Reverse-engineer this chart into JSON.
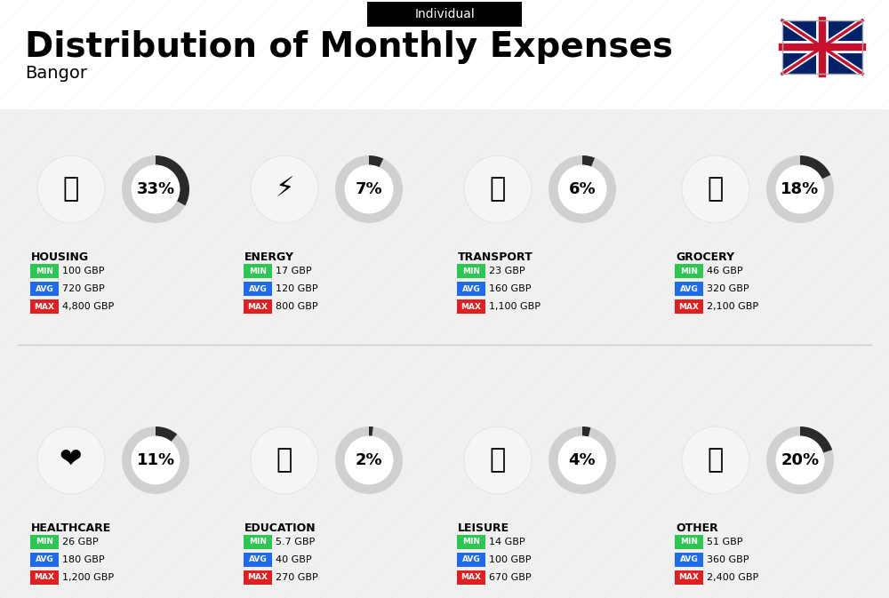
{
  "title": "Distribution of Monthly Expenses",
  "subtitle": "Individual",
  "city": "Bangor",
  "bg_color": "#f0f0f0",
  "categories": [
    {
      "name": "HOUSING",
      "percent": 33,
      "min": "100 GBP",
      "avg": "720 GBP",
      "max": "4,800 GBP",
      "row": 0,
      "col": 0
    },
    {
      "name": "ENERGY",
      "percent": 7,
      "min": "17 GBP",
      "avg": "120 GBP",
      "max": "800 GBP",
      "row": 0,
      "col": 1
    },
    {
      "name": "TRANSPORT",
      "percent": 6,
      "min": "23 GBP",
      "avg": "160 GBP",
      "max": "1,100 GBP",
      "row": 0,
      "col": 2
    },
    {
      "name": "GROCERY",
      "percent": 18,
      "min": "46 GBP",
      "avg": "320 GBP",
      "max": "2,100 GBP",
      "row": 0,
      "col": 3
    },
    {
      "name": "HEALTHCARE",
      "percent": 11,
      "min": "26 GBP",
      "avg": "180 GBP",
      "max": "1,200 GBP",
      "row": 1,
      "col": 0
    },
    {
      "name": "EDUCATION",
      "percent": 2,
      "min": "5.7 GBP",
      "avg": "40 GBP",
      "max": "270 GBP",
      "row": 1,
      "col": 1
    },
    {
      "name": "LEISURE",
      "percent": 4,
      "min": "14 GBP",
      "avg": "100 GBP",
      "max": "670 GBP",
      "row": 1,
      "col": 2
    },
    {
      "name": "OTHER",
      "percent": 20,
      "min": "51 GBP",
      "avg": "360 GBP",
      "max": "2,400 GBP",
      "row": 1,
      "col": 3
    }
  ],
  "color_min": "#2dc653",
  "color_avg": "#1e6ceb",
  "color_max": "#e02020",
  "arc_color": "#333333",
  "arc_bg_color": "#cccccc",
  "label_fontsize": 9,
  "name_fontsize": 9,
  "percent_fontsize": 13,
  "title_fontsize": 28,
  "subtitle_fontsize": 10,
  "city_fontsize": 14
}
